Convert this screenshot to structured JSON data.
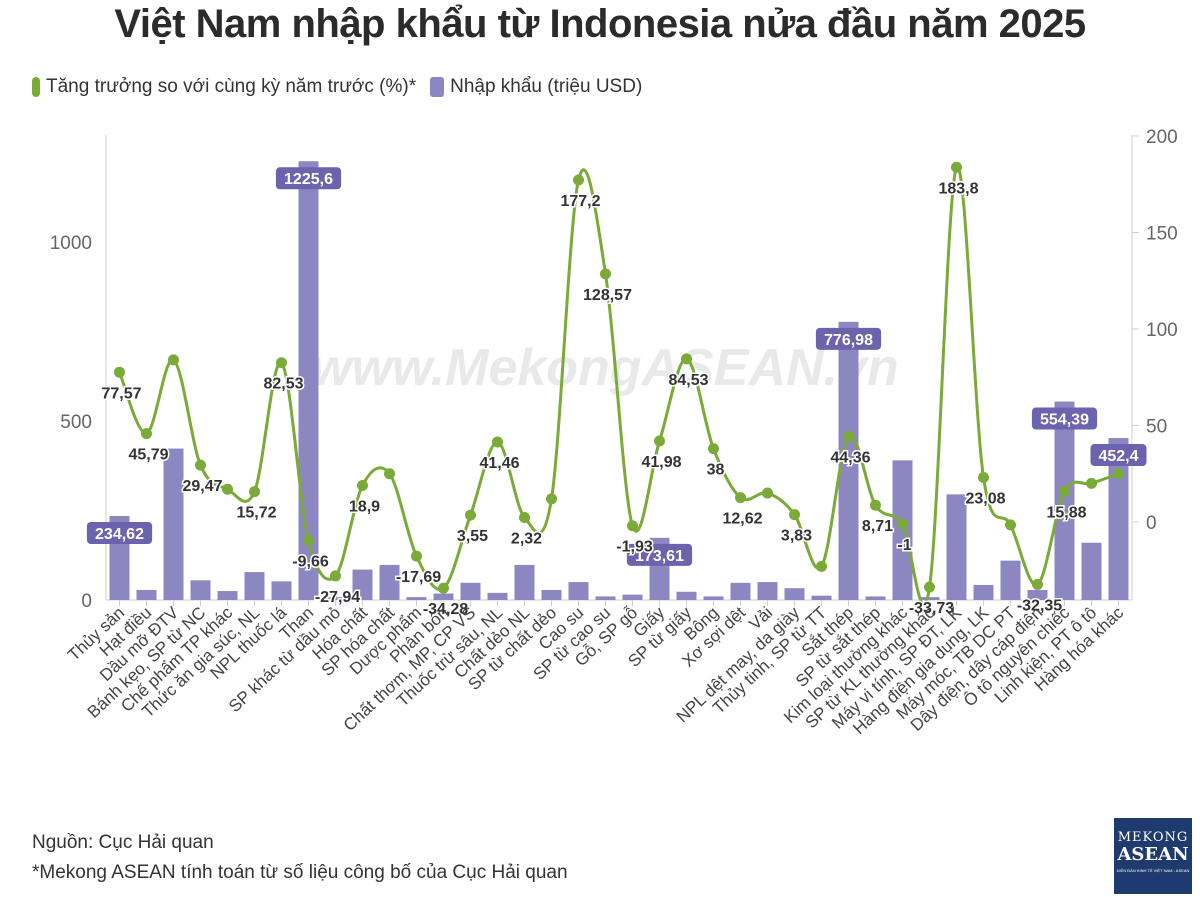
{
  "title": "Việt Nam nhập khẩu từ Indonesia nửa đầu năm 2025",
  "legend": {
    "growth": "Tăng trưởng so với cùng kỳ năm trước (%)*",
    "imports": "Nhập khẩu (triệu USD)"
  },
  "watermark": "www.MekongASEAN.vn",
  "source": "Nguồn: Cục Hải quan",
  "footnote": "*Mekong ASEAN tính toán từ số liệu công bố của Cục Hải quan",
  "logo": {
    "line1": "MEKONG",
    "line2": "ASEAN",
    "line3": "DIỄN ĐÀN KINH TẾ VIỆT NAM - ASEAN"
  },
  "colors": {
    "bar": "#8c87c0",
    "line": "#7aaa37",
    "label_bg": "#6b63ad"
  },
  "chart_data": {
    "type": "bar",
    "categories": [
      "Thủy sản",
      "Hạt điều",
      "Dầu mỡ ĐTV",
      "Bánh kẹo, SP từ NC",
      "Chế phẩm TP khác",
      "Thức ăn gia súc, NL",
      "NPL thuốc lá",
      "Than",
      "SP khác từ dầu mỏ",
      "Hóa chất",
      "SP hóa chất",
      "Dược phẩm",
      "Phân bón",
      "Chất thơm, MP, CP VS",
      "Thuốc trừ sâu, NL",
      "Chất dẻo NL",
      "SP từ chất dẻo",
      "Cao su",
      "SP từ cao su",
      "Gỗ, SP gỗ",
      "Giấy",
      "SP từ giấy",
      "Bông",
      "Xơ sợi dệt",
      "Vải",
      "NPL dệt may, da giày",
      "Thủy tinh, SP từ TT",
      "Sắt thép",
      "SP từ sắt thép",
      "Kim loại thường khác",
      "SP từ KL thường khác",
      "Máy vi tính, SP ĐT, LK",
      "Hàng điện gia dụng, LK",
      "Máy móc, TB DC PT",
      "Dây điện, dây cáp điện",
      "Ô tô nguyên chiếc",
      "Linh kiện, PT ô tô",
      "Hàng hóa khác"
    ],
    "series": [
      {
        "name": "Nhập khẩu (triệu USD)",
        "axis": "left",
        "type": "bar",
        "values": [
          234.62,
          28,
          423,
          55,
          25,
          78,
          52,
          1225.6,
          8,
          85,
          98,
          8,
          18,
          48,
          20,
          98,
          28,
          50,
          10,
          15,
          173.61,
          23,
          10,
          48,
          50,
          33,
          12,
          776.98,
          10,
          390,
          8,
          295,
          42,
          110,
          28,
          554.39,
          160,
          452.4
        ],
        "labeled": [
          0,
          7,
          20,
          27,
          35,
          37
        ],
        "labels": {
          "0": "234,62",
          "7": "1225,6",
          "20": "173,61",
          "27": "776,98",
          "35": "554,39",
          "37": "452,4"
        }
      },
      {
        "name": "Tăng trưởng so với cùng kỳ năm trước (%)*",
        "axis": "right",
        "type": "line",
        "values": [
          77.57,
          45.79,
          84,
          29.47,
          17,
          15.72,
          82.53,
          -9.66,
          -27.94,
          18.9,
          25,
          -17.69,
          -34.28,
          3.55,
          41.46,
          2.32,
          12,
          177.2,
          128.57,
          -1.93,
          41.98,
          84.53,
          38,
          12.62,
          15,
          3.83,
          -23,
          44.36,
          8.71,
          -1,
          -33.73,
          183.8,
          23.08,
          -1.5,
          -32.35,
          15.88,
          20,
          25
        ],
        "labels": {
          "0": "77,57",
          "1": "45,79",
          "3": "29,47",
          "5": "15,72",
          "6": "82,53",
          "7": "-9,66",
          "8": "-27,94",
          "9": "18,9",
          "11": "-17,69",
          "12": "-34,28",
          "13": "3,55",
          "14": "41,46",
          "15": "2,32",
          "17": "177,2",
          "18": "128,57",
          "19": "-1,93",
          "20": "41,98",
          "21": "84,53",
          "22": "38",
          "23": "12,62",
          "25": "3,83",
          "27": "44,36",
          "28": "8,71",
          "29": "-1",
          "30": "-33,73",
          "31": "183,8",
          "32": "23,08",
          "34": "-32,35",
          "35": "15,88"
        }
      }
    ],
    "y_left": {
      "ylim": [
        0,
        1300
      ],
      "ticks": [
        0,
        500,
        1000
      ]
    },
    "y_right": {
      "ylim": [
        -42,
        200
      ],
      "ticks": [
        0,
        50,
        100,
        150,
        200
      ]
    },
    "grid": false,
    "legend": "top-left"
  }
}
